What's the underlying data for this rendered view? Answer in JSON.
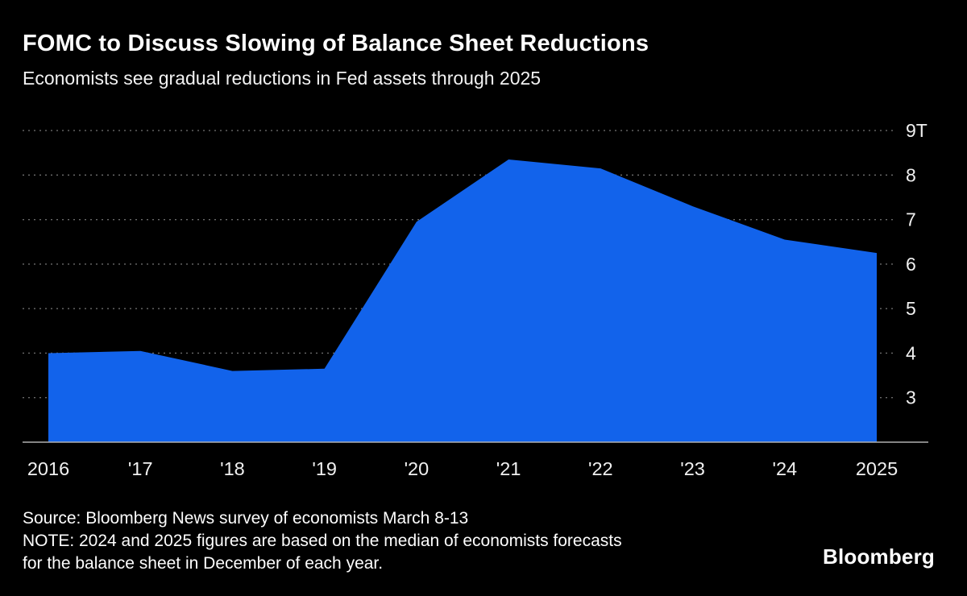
{
  "header": {
    "title": "FOMC to Discuss Slowing of Balance Sheet Reductions",
    "subtitle": "Economists see gradual reductions in Fed assets through 2025"
  },
  "chart_data": {
    "type": "area",
    "title": "FOMC to Discuss Slowing of Balance Sheet Reductions",
    "subtitle": "Economists see gradual reductions in Fed assets through 2025",
    "x": [
      2016,
      2017,
      2018,
      2019,
      2020,
      2021,
      2022,
      2023,
      2024,
      2025
    ],
    "x_tick_labels": [
      "2016",
      "'17",
      "'18",
      "'19",
      "'20",
      "'21",
      "'22",
      "'23",
      "'24",
      "2025"
    ],
    "values": [
      4.0,
      4.05,
      3.6,
      3.65,
      6.95,
      8.35,
      8.15,
      7.3,
      6.55,
      6.25
    ],
    "y_unit": "T",
    "y_ticks": [
      3,
      4,
      5,
      6,
      7,
      8,
      9
    ],
    "y_tick_labels": [
      "3",
      "4",
      "5",
      "6",
      "7",
      "8",
      "9T"
    ],
    "ylim": [
      2.0,
      9.4
    ],
    "grid": "horizontal-dotted",
    "legend": false,
    "area_color": "#1263eb",
    "grid_color": "#6b6b6b",
    "axis_color": "#b0b0b0",
    "tick_label_color": "#f0f0f0",
    "background_color": "#000000"
  },
  "footer": {
    "source": "Source: Bloomberg News survey of economists March 8-13",
    "note_lines": [
      "NOTE: 2024 and 2025 figures are based on the median of economists forecasts",
      "for the balance sheet in December of each year."
    ],
    "brand": "Bloomberg"
  }
}
